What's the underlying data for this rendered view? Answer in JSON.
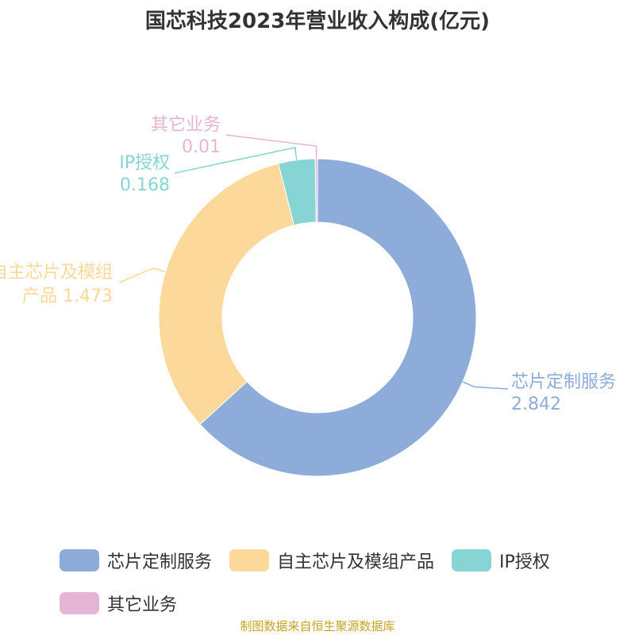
{
  "chart_data": {
    "type": "pie",
    "title": "国芯科技2023年营业收入构成(亿元)",
    "slices": [
      {
        "name": "芯片定制服务",
        "value": 2.842,
        "color": "#8eacd9",
        "label_lines": [
          "芯片定制服务",
          "2.842"
        ]
      },
      {
        "name": "自主芯片及模组产品",
        "value": 1.473,
        "color": "#fdd89b",
        "label_lines": [
          "自主芯片及模组",
          "产品 1.473"
        ]
      },
      {
        "name": "IP授权",
        "value": 0.168,
        "color": "#87d4d5",
        "label_lines": [
          "IP授权",
          "0.168"
        ]
      },
      {
        "name": "其它业务",
        "value": 0.01,
        "color": "#e6b5d6",
        "label_lines": [
          "其它业务",
          "0.01"
        ]
      }
    ],
    "legend": [
      {
        "label": "芯片定制服务",
        "color": "#8eacd9"
      },
      {
        "label": "自主芯片及模组产品",
        "color": "#fdd89b"
      },
      {
        "label": "IP授权",
        "color": "#87d4d5"
      },
      {
        "label": "其它业务",
        "color": "#e6b5d6"
      }
    ]
  },
  "source": "制图数据来自恒生聚源数据库"
}
